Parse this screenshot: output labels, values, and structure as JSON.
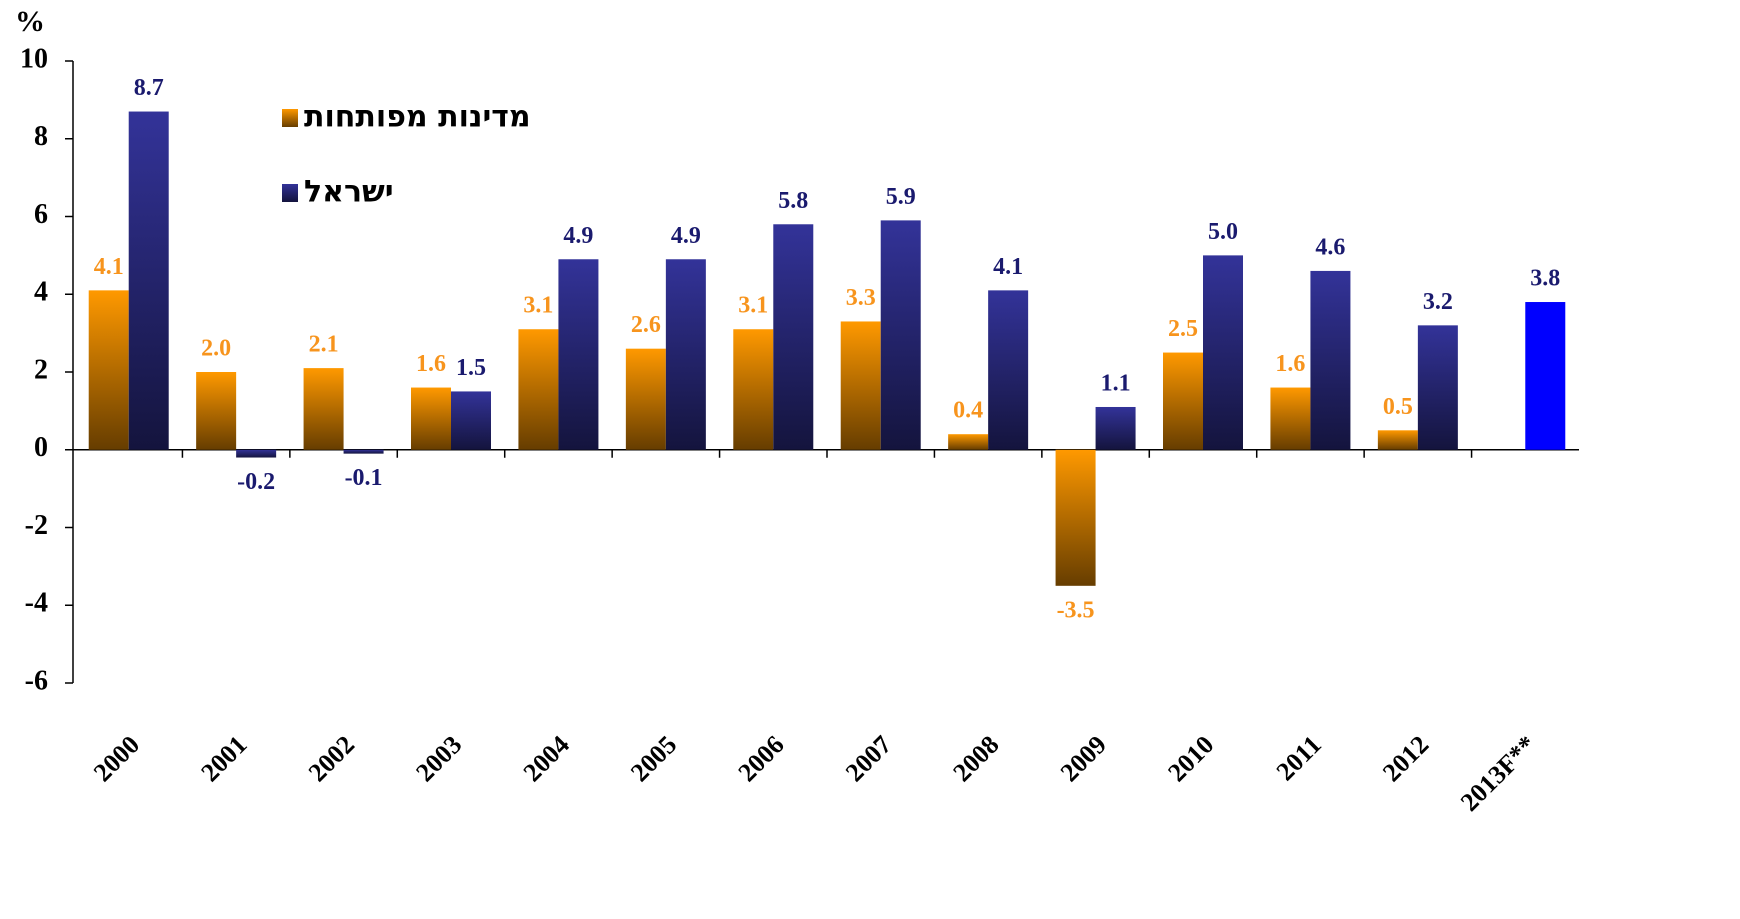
{
  "chart_data": {
    "type": "bar",
    "unit_label": "%",
    "categories": [
      "2000",
      "2001",
      "2002",
      "2003",
      "2004",
      "2005",
      "2006",
      "2007",
      "2008",
      "2009",
      "2010",
      "2011",
      "2012",
      "2013F**"
    ],
    "series": [
      {
        "name": "מדינות מפותחות",
        "color": "#ff9900",
        "label_color": "#f7941d",
        "values": [
          4.1,
          2.0,
          2.1,
          1.6,
          3.1,
          2.6,
          3.1,
          3.3,
          0.4,
          -3.5,
          2.5,
          1.6,
          0.5,
          null
        ],
        "value_labels": [
          "4.1",
          "2.0",
          "2.1",
          "1.6",
          "3.1",
          "2.6",
          "3.1",
          "3.3",
          "0.4",
          "-3.5",
          "2.5",
          "1.6",
          "0.5",
          null
        ]
      },
      {
        "name": "ישראל",
        "color": "#333399",
        "label_color": "#1a1a6e",
        "colors": [
          null,
          null,
          null,
          null,
          null,
          null,
          null,
          null,
          null,
          null,
          null,
          null,
          null,
          "#0000ff"
        ],
        "values": [
          8.7,
          -0.2,
          -0.1,
          1.5,
          4.9,
          4.9,
          5.8,
          5.9,
          4.1,
          1.1,
          5.0,
          4.6,
          3.2,
          3.8
        ],
        "value_labels": [
          "8.7",
          "-0.2",
          "-0.1",
          "1.5",
          "4.9",
          "4.9",
          "5.8",
          "5.9",
          "4.1",
          "1.1",
          "5.0",
          "4.6",
          "3.2",
          "3.8"
        ]
      }
    ],
    "ylim": [
      -6,
      10
    ],
    "yticks": [
      -6,
      -4,
      -2,
      0,
      2,
      4,
      6,
      8,
      10
    ],
    "gradient": true,
    "grid": false
  }
}
